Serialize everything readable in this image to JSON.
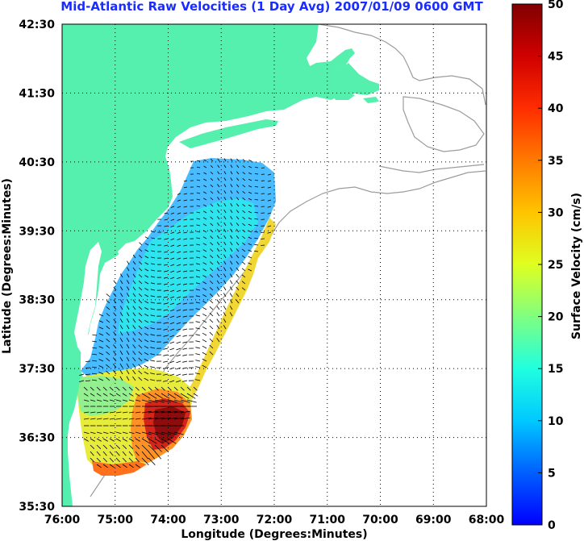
{
  "title": "Mid-Atlantic Raw Velocities (1 Day Avg) 2007/01/09 0600 GMT",
  "x_axis": {
    "label": "Longitude (Degrees:Minutes)",
    "ticks": [
      "76:00",
      "75:00",
      "74:00",
      "73:00",
      "72:00",
      "71:00",
      "70:00",
      "69:00",
      "68:00"
    ]
  },
  "y_axis": {
    "label": "Latitude (Degrees:Minutes)",
    "ticks": [
      "42:30",
      "41:30",
      "40:30",
      "39:30",
      "38:30",
      "37:30",
      "36:30",
      "35:30"
    ]
  },
  "colorbar": {
    "label": "Surface Velocity (cm/s)",
    "ticks": [
      "0",
      "5",
      "10",
      "15",
      "20",
      "25",
      "30",
      "35",
      "40",
      "45",
      "50"
    ],
    "min": 0,
    "max": 50
  },
  "colors": {
    "land": "#55efae",
    "coastline_gray": "#9c9c9c",
    "title_blue": "#1a2cff",
    "grid": "#000000"
  },
  "map_extent": {
    "lon_west": -76.0,
    "lon_east": -68.0,
    "lat_south": 35.5,
    "lat_north": 42.5
  }
}
